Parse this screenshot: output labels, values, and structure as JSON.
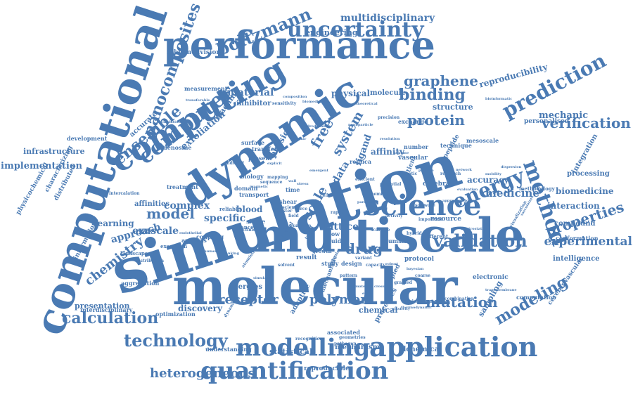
{
  "color": "#4a7ab3",
  "color_light": "#7a9dc7",
  "words": [
    "simulation",
    "molecular",
    "multiscale",
    "computational",
    "dynamic",
    "performance",
    "computing",
    "science",
    "uncertainty",
    "application",
    "modelling",
    "quantification",
    "method",
    "prediction",
    "technology",
    "calculation",
    "energy",
    "validation",
    "modeling",
    "verification",
    "binding",
    "protein",
    "graphene",
    "computer",
    "ensemble",
    "nanocomposites",
    "boltzmann",
    "properties",
    "experimental",
    "chemistry",
    "model",
    "mutation",
    "receptor",
    "polymer",
    "drug",
    "heterogeneous",
    "multidisciplinary",
    "material",
    "scale",
    "lattice",
    "specific",
    "complex",
    "exascale",
    "approach",
    "reproducibility",
    "engineering",
    "interaction",
    "biomedicine",
    "medicine",
    "accuracy",
    "infrastructure",
    "implementation",
    "presentation",
    "discovery",
    "energies",
    "mechanic",
    "free",
    "system",
    "data",
    "ligand",
    "affinity",
    "physical",
    "molecule",
    "exfoliation",
    "machine",
    "learning",
    "affinities",
    "structure",
    "inhibitor",
    "physic",
    "blood",
    "sampling",
    "integration",
    "processing",
    "compound",
    "intelligence",
    "conformation",
    "personalised",
    "inbiomedvision",
    "accurate",
    "physicochemical",
    "characterizing",
    "distributed",
    "information",
    "aggregation",
    "interdisciplinary",
    "optimization",
    "understanding",
    "reproducible",
    "statistical",
    "mechanism",
    "alchemical",
    "chemical",
    "processes",
    "associated",
    "adaptive",
    "study",
    "design",
    "result",
    "flow",
    "fluid",
    "human",
    "coupled",
    "protocol",
    "electronic",
    "cerebrovascular",
    "computation",
    "different",
    "vascular",
    "cerebral",
    "patient",
    "resource",
    "technique",
    "mesoscale",
    "exchange",
    "replica",
    "development",
    "adenosine",
    "measurement",
    "transfer",
    "present",
    "surface",
    "domain",
    "transport",
    "biology",
    "treatment",
    "analysis",
    "execution",
    "coupling",
    "single",
    "cancer",
    "reliable",
    "time",
    "shear",
    "factor",
    "number",
    "landscape",
    "distribution",
    "growth",
    "methodology",
    "peptide",
    "kinetic",
    "scalable",
    "mechanistic",
    "environment",
    "combination",
    "pathogen",
    "recognition",
    "geometries",
    "software",
    "important",
    "intercalation",
    "induced",
    "exascience",
    "precision",
    "research",
    "visualization",
    "electrostatic",
    "biomedical",
    "theoretical",
    "composition",
    "transferable",
    "cellular",
    "parallel",
    "pattern",
    "coarse",
    "grained",
    "approximation",
    "network",
    "mobility",
    "transmembrane",
    "vasculature",
    "dispersion",
    "evaluation",
    "bioinformatic",
    "thermodynamic",
    "cluster",
    "field",
    "force",
    "simulate",
    "atomistic",
    "genomic",
    "mapping",
    "sequence",
    "variant",
    "capacity",
    "activity",
    "rapid",
    "solvent",
    "efficient",
    "potential",
    "cell",
    "clinical",
    "target",
    "quantum",
    "membrane",
    "sensitivity",
    "prognostic",
    "hybrid",
    "translation",
    "endothelial",
    "numerical",
    "ranking",
    "magnetic",
    "explicit",
    "parameter",
    "signalling",
    "dynamical",
    "wall",
    "stress",
    "plasticity",
    "cross",
    "particle",
    "hydrodynamic",
    "nanoparticle",
    "resolution",
    "scheme",
    "robust",
    "bayesian",
    "error",
    "estimate",
    "emergent"
  ]
}
